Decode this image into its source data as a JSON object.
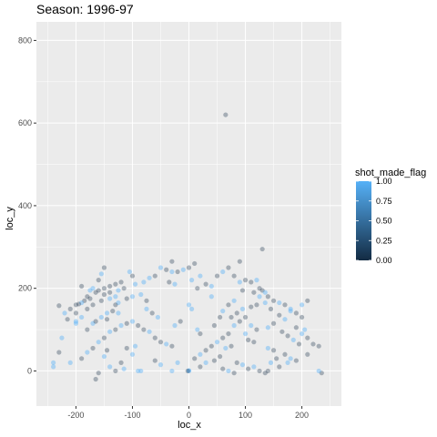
{
  "chart_data": {
    "type": "scatter",
    "title": "Season: 1996-97",
    "xlabel": "loc_x",
    "ylabel": "loc_y",
    "xlim": [
      -270,
      270
    ],
    "ylim": [
      -85,
      845
    ],
    "x_ticks": [
      -200,
      -100,
      0,
      100,
      200
    ],
    "y_ticks": [
      0,
      200,
      400,
      600,
      800
    ],
    "grid": true,
    "legend": {
      "title": "shot_made_flag",
      "placement": "right",
      "type": "colorbar",
      "ticks": [
        1.0,
        0.75,
        0.5,
        0.25,
        0.0
      ],
      "tick_labels": [
        "1.00",
        "0.75",
        "0.50",
        "0.25",
        "0.00"
      ],
      "color_low": "#132B43",
      "color_high": "#56B1F7"
    },
    "colors": {
      "made": "#56B1F7",
      "missed": "#132B43",
      "panel_background": "#EBEBEB",
      "grid": "#FFFFFF"
    },
    "points": [
      [
        -150,
        250,
        0
      ],
      [
        -155,
        235,
        1
      ],
      [
        -160,
        220,
        0
      ],
      [
        -150,
        200,
        0
      ],
      [
        -140,
        205,
        0
      ],
      [
        -130,
        210,
        0
      ],
      [
        -120,
        215,
        0
      ],
      [
        -165,
        190,
        0
      ],
      [
        -175,
        195,
        1
      ],
      [
        -180,
        180,
        0
      ],
      [
        -185,
        170,
        0
      ],
      [
        -190,
        165,
        1
      ],
      [
        -195,
        162,
        0
      ],
      [
        -200,
        160,
        0
      ],
      [
        -210,
        150,
        0
      ],
      [
        -220,
        140,
        1
      ],
      [
        -230,
        158,
        0
      ],
      [
        -215,
        125,
        0
      ],
      [
        -200,
        115,
        1
      ],
      [
        -140,
        190,
        0
      ],
      [
        -130,
        180,
        1
      ],
      [
        -155,
        170,
        0
      ],
      [
        -170,
        160,
        0
      ],
      [
        -125,
        165,
        1
      ],
      [
        -110,
        175,
        0
      ],
      [
        -100,
        180,
        1
      ],
      [
        -95,
        210,
        1
      ],
      [
        -80,
        215,
        1
      ],
      [
        -70,
        225,
        1
      ],
      [
        -60,
        230,
        0
      ],
      [
        -50,
        250,
        1
      ],
      [
        -40,
        245,
        0
      ],
      [
        -30,
        240,
        1
      ],
      [
        -20,
        240,
        0
      ],
      [
        -10,
        245,
        1
      ],
      [
        0,
        250,
        0
      ],
      [
        10,
        260,
        0
      ],
      [
        20,
        230,
        1
      ],
      [
        30,
        210,
        0
      ],
      [
        40,
        205,
        1
      ],
      [
        50,
        230,
        0
      ],
      [
        60,
        240,
        1
      ],
      [
        70,
        250,
        0
      ],
      [
        80,
        230,
        0
      ],
      [
        90,
        215,
        1
      ],
      [
        100,
        220,
        0
      ],
      [
        110,
        215,
        0
      ],
      [
        120,
        220,
        1
      ],
      [
        125,
        200,
        0
      ],
      [
        130,
        195,
        0
      ],
      [
        135,
        190,
        1
      ],
      [
        140,
        180,
        0
      ],
      [
        150,
        170,
        0
      ],
      [
        160,
        165,
        1
      ],
      [
        170,
        160,
        0
      ],
      [
        180,
        150,
        1
      ],
      [
        190,
        140,
        0
      ],
      [
        200,
        130,
        0
      ],
      [
        205,
        100,
        1
      ],
      [
        210,
        80,
        0
      ],
      [
        220,
        65,
        0
      ],
      [
        230,
        60,
        0
      ],
      [
        235,
        -5,
        0
      ],
      [
        230,
        0,
        1
      ],
      [
        190,
        25,
        0
      ],
      [
        180,
        30,
        1
      ],
      [
        170,
        40,
        0
      ],
      [
        150,
        50,
        0
      ],
      [
        140,
        55,
        1
      ],
      [
        120,
        100,
        0
      ],
      [
        110,
        110,
        1
      ],
      [
        100,
        130,
        0
      ],
      [
        90,
        120,
        0
      ],
      [
        80,
        110,
        1
      ],
      [
        70,
        90,
        0
      ],
      [
        60,
        80,
        0
      ],
      [
        50,
        70,
        1
      ],
      [
        40,
        60,
        0
      ],
      [
        30,
        50,
        0
      ],
      [
        20,
        40,
        1
      ],
      [
        10,
        30,
        0
      ],
      [
        0,
        0,
        1
      ],
      [
        0,
        1,
        1
      ],
      [
        -2,
        0,
        0
      ],
      [
        -20,
        20,
        1
      ],
      [
        -30,
        60,
        0
      ],
      [
        -40,
        65,
        1
      ],
      [
        -50,
        70,
        0
      ],
      [
        -60,
        80,
        0
      ],
      [
        -70,
        95,
        1
      ],
      [
        -80,
        100,
        0
      ],
      [
        -90,
        110,
        0
      ],
      [
        -100,
        120,
        1
      ],
      [
        -110,
        115,
        0
      ],
      [
        -120,
        110,
        1
      ],
      [
        -130,
        100,
        0
      ],
      [
        -140,
        95,
        1
      ],
      [
        -150,
        80,
        0
      ],
      [
        -160,
        70,
        1
      ],
      [
        -170,
        55,
        0
      ],
      [
        -180,
        45,
        1
      ],
      [
        -190,
        30,
        0
      ],
      [
        -210,
        20,
        1
      ],
      [
        -240,
        20,
        1
      ],
      [
        -240,
        10,
        1
      ],
      [
        -230,
        45,
        0
      ],
      [
        -140,
        10,
        1
      ],
      [
        -130,
        0,
        0
      ],
      [
        -160,
        -5,
        0
      ],
      [
        -165,
        -20,
        0
      ],
      [
        -120,
        20,
        0
      ],
      [
        -115,
        5,
        1
      ],
      [
        -90,
        0,
        1
      ],
      [
        -85,
        0,
        1
      ],
      [
        -30,
        0,
        1
      ],
      [
        20,
        10,
        0
      ],
      [
        30,
        20,
        1
      ],
      [
        45,
        25,
        0
      ],
      [
        55,
        35,
        0
      ],
      [
        65,
        55,
        1
      ],
      [
        75,
        60,
        0
      ],
      [
        85,
        20,
        0
      ],
      [
        95,
        15,
        1
      ],
      [
        105,
        5,
        0
      ],
      [
        115,
        10,
        1
      ],
      [
        125,
        0,
        0
      ],
      [
        135,
        -5,
        0
      ],
      [
        145,
        20,
        1
      ],
      [
        155,
        30,
        0
      ],
      [
        65,
        620,
        0
      ],
      [
        130,
        295,
        0
      ],
      [
        90,
        265,
        0
      ],
      [
        -30,
        265,
        0
      ],
      [
        -100,
        230,
        0
      ],
      [
        -105,
        240,
        1
      ],
      [
        -200,
        120,
        1
      ],
      [
        -225,
        80,
        1
      ],
      [
        -170,
        115,
        1
      ],
      [
        -180,
        100,
        0
      ],
      [
        -145,
        140,
        1
      ],
      [
        -135,
        145,
        0
      ],
      [
        -125,
        140,
        1
      ],
      [
        160,
        135,
        0
      ],
      [
        170,
        125,
        1
      ],
      [
        150,
        115,
        0
      ],
      [
        140,
        105,
        1
      ],
      [
        165,
        95,
        0
      ],
      [
        175,
        85,
        0
      ],
      [
        185,
        75,
        1
      ],
      [
        195,
        65,
        0
      ],
      [
        100,
        90,
        1
      ],
      [
        105,
        75,
        0
      ],
      [
        115,
        70,
        0
      ],
      [
        -75,
        150,
        1
      ],
      [
        -65,
        140,
        0
      ],
      [
        -55,
        130,
        1
      ],
      [
        20,
        90,
        0
      ],
      [
        15,
        100,
        1
      ],
      [
        5,
        150,
        1
      ],
      [
        0,
        160,
        1
      ],
      [
        -15,
        120,
        0
      ],
      [
        -25,
        110,
        1
      ],
      [
        45,
        110,
        0
      ],
      [
        55,
        130,
        0
      ],
      [
        60,
        145,
        1
      ],
      [
        70,
        160,
        0
      ],
      [
        80,
        170,
        1
      ],
      [
        110,
        155,
        0
      ],
      [
        120,
        160,
        0
      ],
      [
        135,
        165,
        1
      ],
      [
        145,
        150,
        0
      ],
      [
        -190,
        205,
        0
      ],
      [
        -175,
        175,
        0
      ],
      [
        -125,
        195,
        1
      ],
      [
        -115,
        200,
        0
      ],
      [
        -85,
        185,
        1
      ],
      [
        -75,
        170,
        0
      ],
      [
        40,
        180,
        1
      ],
      [
        95,
        195,
        0
      ],
      [
        115,
        190,
        0
      ],
      [
        125,
        180,
        1
      ],
      [
        190,
        105,
        0
      ],
      [
        200,
        90,
        1
      ],
      [
        210,
        40,
        0
      ],
      [
        -100,
        40,
        1
      ],
      [
        -110,
        55,
        0
      ],
      [
        -95,
        60,
        1
      ],
      [
        -150,
        35,
        1
      ],
      [
        -145,
        50,
        0
      ],
      [
        -60,
        25,
        0
      ],
      [
        -50,
        15,
        1
      ],
      [
        60,
        5,
        0
      ],
      [
        70,
        0,
        1
      ],
      [
        80,
        -5,
        0
      ],
      [
        140,
        0,
        0
      ],
      [
        160,
        10,
        0
      ],
      [
        175,
        20,
        1
      ],
      [
        -165,
        120,
        0
      ],
      [
        -155,
        130,
        1
      ],
      [
        -145,
        125,
        0
      ],
      [
        95,
        150,
        1
      ],
      [
        85,
        140,
        0
      ],
      [
        75,
        130,
        0
      ],
      [
        180,
        145,
        1
      ],
      [
        -130,
        160,
        0
      ],
      [
        -140,
        175,
        1
      ],
      [
        -150,
        185,
        0
      ],
      [
        -160,
        195,
        0
      ],
      [
        -170,
        200,
        1
      ],
      [
        -180,
        150,
        0
      ],
      [
        -200,
        140,
        0
      ],
      [
        -190,
        130,
        1
      ],
      [
        210,
        170,
        0
      ],
      [
        200,
        160,
        1
      ],
      [
        -25,
        210,
        1
      ],
      [
        -35,
        215,
        0
      ],
      [
        5,
        220,
        1
      ],
      [
        15,
        200,
        0
      ]
    ]
  }
}
